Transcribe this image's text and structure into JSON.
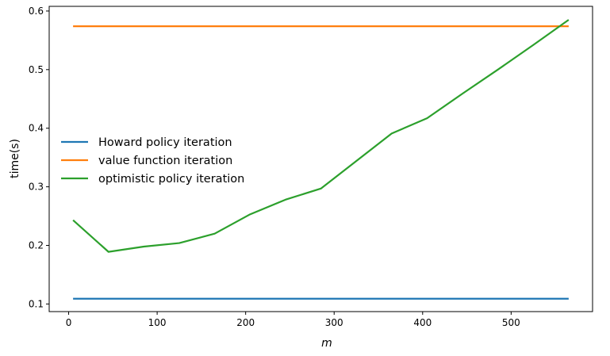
{
  "chart_data": {
    "type": "line",
    "title": "",
    "xlabel": "m",
    "ylabel": "time(s)",
    "xlim": [
      -22,
      592
    ],
    "ylim": [
      0.087,
      0.608
    ],
    "xticks": [
      0,
      100,
      200,
      300,
      400,
      500
    ],
    "yticks": [
      0.1,
      0.2,
      0.3,
      0.4,
      0.5,
      0.6
    ],
    "grid": false,
    "legend_position": "center-left",
    "series": [
      {
        "name": "Howard policy iteration",
        "color": "#1f77b4",
        "x": [
          5,
          565
        ],
        "y": [
          0.109,
          0.109
        ]
      },
      {
        "name": "value function iteration",
        "color": "#ff7f0e",
        "x": [
          5,
          565
        ],
        "y": [
          0.574,
          0.574
        ]
      },
      {
        "name": "optimistic policy iteration",
        "color": "#2ca02c",
        "x": [
          5,
          45,
          85,
          125,
          165,
          205,
          245,
          285,
          325,
          365,
          405,
          445,
          485,
          525,
          565
        ],
        "y": [
          0.243,
          0.189,
          0.198,
          0.204,
          0.22,
          0.253,
          0.278,
          0.297,
          0.344,
          0.391,
          0.417,
          0.459,
          0.5,
          0.542,
          0.585
        ]
      }
    ]
  }
}
